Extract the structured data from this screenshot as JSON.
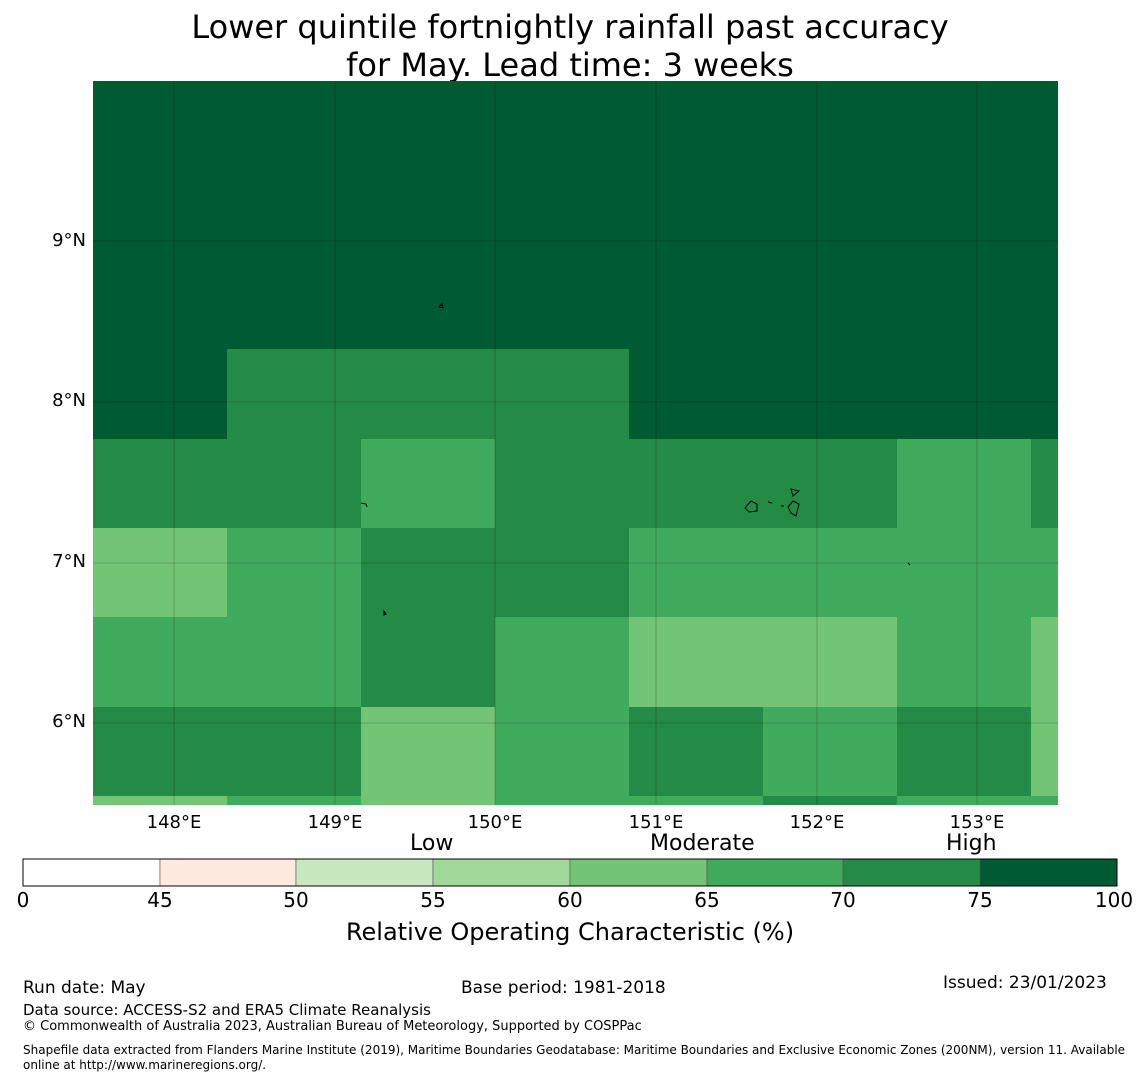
{
  "title": {
    "line1": "Lower quintile fortnightly rainfall past accuracy",
    "line2": "for May. Lead time: 3 weeks"
  },
  "map": {
    "lon_range": [
      147.5,
      153.5
    ],
    "lat_range": [
      5.5,
      10.0
    ],
    "grid_lines": true,
    "lat_ticks": [
      "9°N",
      "8°N",
      "7°N",
      "6°N"
    ],
    "lon_ticks": [
      "148°E",
      "149°E",
      "150°E",
      "151°E",
      "152°E",
      "153°E"
    ],
    "roc_grid_rows": [
      {
        "lat": "8.0–10.0",
        "cells": [
          75,
          75,
          75,
          75,
          75,
          75,
          75,
          75
        ]
      },
      {
        "lat": "7.8–8.3",
        "cells": [
          75,
          70,
          70,
          70,
          75,
          75,
          75,
          75
        ]
      },
      {
        "lat": "7.2–7.8",
        "cells": [
          70,
          70,
          65,
          70,
          70,
          70,
          65,
          70
        ]
      },
      {
        "lat": "6.7–7.2",
        "cells": [
          60,
          65,
          70,
          70,
          65,
          65,
          65,
          65
        ]
      },
      {
        "lat": "6.1–6.7",
        "cells": [
          65,
          65,
          70,
          65,
          60,
          60,
          65,
          60
        ]
      },
      {
        "lat": "5.6–6.1",
        "cells": [
          70,
          70,
          60,
          65,
          70,
          65,
          70,
          60
        ]
      },
      {
        "lat": "5.5–5.6",
        "cells": [
          60,
          65,
          60,
          65,
          65,
          70,
          65,
          65
        ]
      }
    ]
  },
  "colorbar": {
    "categories": [
      "Low",
      "Moderate",
      "High"
    ],
    "ticks": [
      "0",
      "45",
      "50",
      "55",
      "60",
      "65",
      "70",
      "75",
      "100"
    ],
    "colors": [
      "#ffffff",
      "#fee9df",
      "#c7e9c0",
      "#a1d99b",
      "#74c476",
      "#41ab5d",
      "#238b45",
      "#005a32"
    ],
    "label": "Relative Operating Characteristic (%)"
  },
  "footer": {
    "run_date": "Run date: May",
    "base_period": "Base period: 1981-2018",
    "issued": "Issued: 23/01/2023",
    "data_source": "Data source: ACCESS-S2 and ERA5 Climate Reanalysis",
    "copyright": "© Commonwealth of Australia 2023, Australian Bureau of Meteorology, Supported by COSPPac",
    "shapefile_line1": "Shapefile data extracted from Flanders Marine Institute (2019), Maritime Boundaries Geodatabase: Maritime Boundaries and Exclusive Economic Zones (200NM), version 11. Available",
    "shapefile_line2": "online at http://www.marineregions.org/."
  }
}
